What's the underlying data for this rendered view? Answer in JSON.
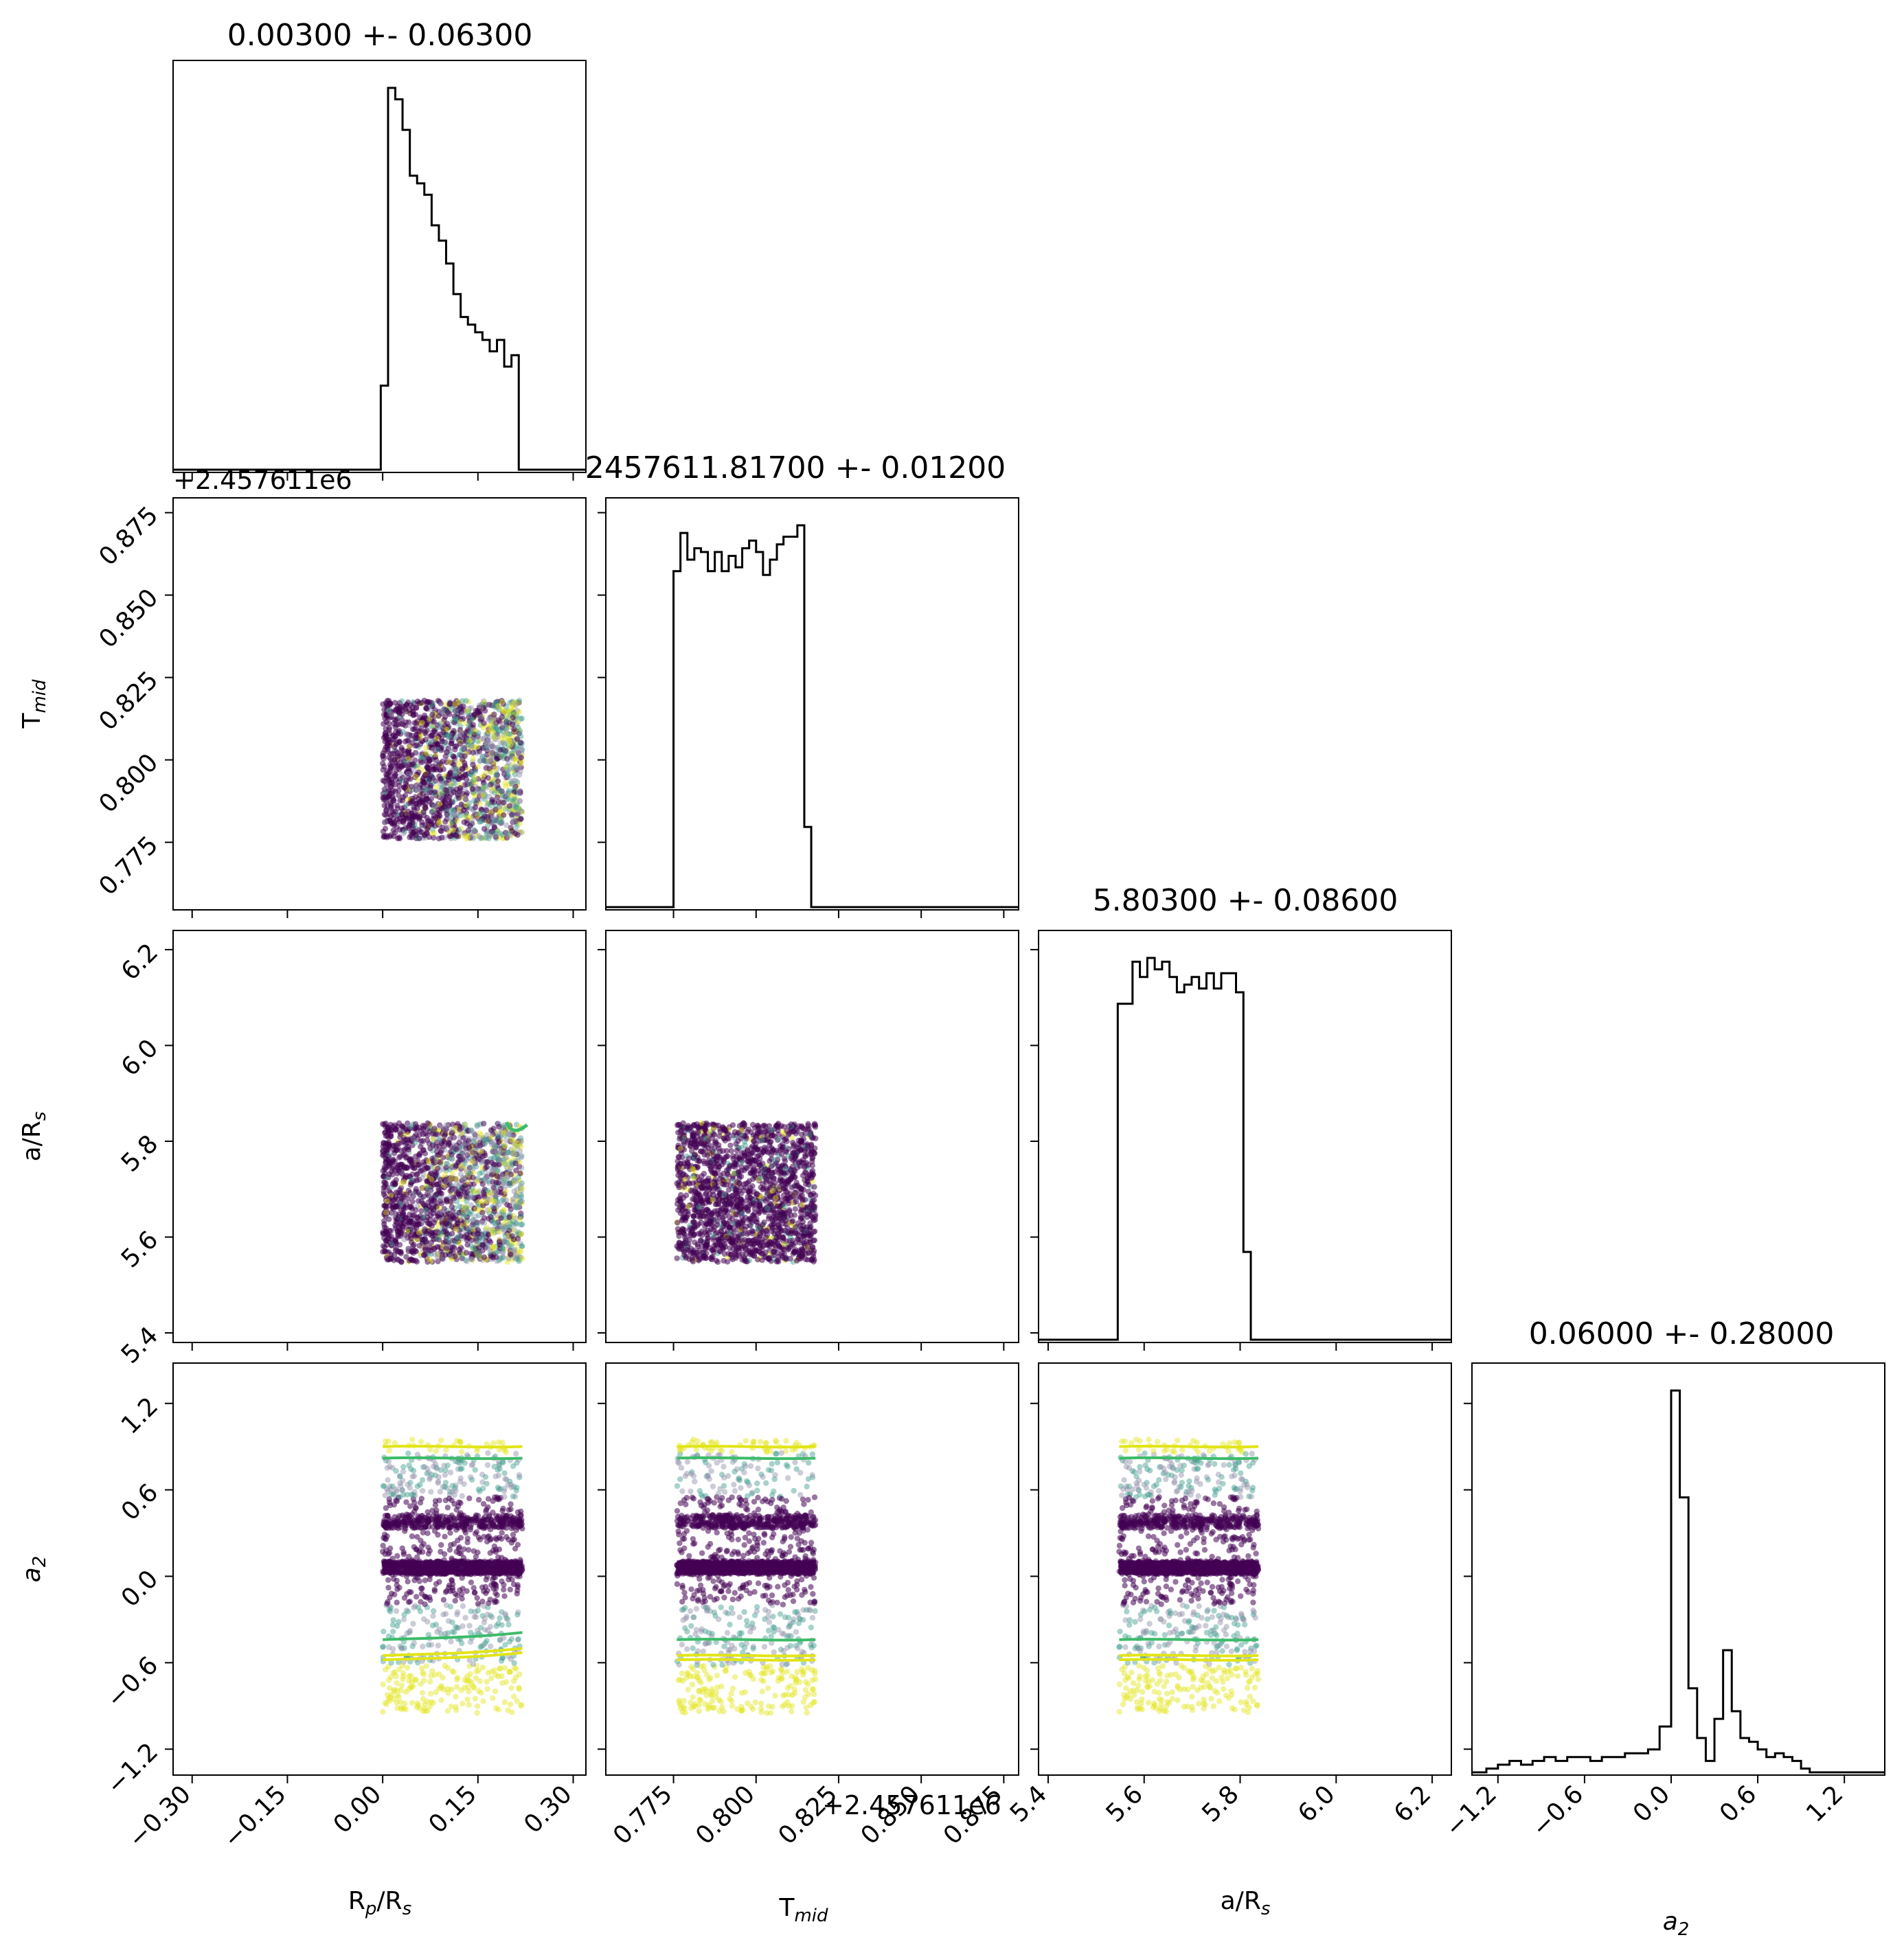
{
  "chart_data": {
    "type": "corner",
    "params": [
      {
        "key": "rp_rs",
        "label": "R",
        "label_sub": "p",
        "label_tail": "/R",
        "label_tail_sub": "s",
        "title": "0.00300 +- 0.06300",
        "range": [
          -0.33,
          0.32
        ],
        "ticks": [
          -0.3,
          -0.15,
          0.0,
          0.15,
          0.3
        ],
        "tick_labels": [
          "−0.30",
          "−0.15",
          "0.00",
          "0.15",
          "0.30"
        ],
        "bin_edges": [
          -0.003,
          0.0085,
          0.0199,
          0.0313,
          0.0428,
          0.0542,
          0.0656,
          0.0771,
          0.0885,
          0.0999,
          0.1114,
          0.1228,
          0.1342,
          0.1457,
          0.1571,
          0.1685,
          0.18,
          0.1914,
          0.2028,
          0.2143,
          0.2257
        ],
        "hist": [
          0.22,
          1.0,
          0.97,
          0.89,
          0.77,
          0.75,
          0.72,
          0.64,
          0.6,
          0.54,
          0.46,
          0.4,
          0.38,
          0.36,
          0.34,
          0.31,
          0.34,
          0.27,
          0.3,
          0.0
        ],
        "sample_range": [
          0.0,
          0.22
        ]
      },
      {
        "key": "t_mid",
        "label": "T",
        "label_sub": "mid",
        "title": "2457611.81700 +- 0.01200",
        "offset": "+2.457611e6",
        "range": [
          0.7545,
          0.8795
        ],
        "ticks": [
          0.775,
          0.8,
          0.825,
          0.85,
          0.875
        ],
        "tick_labels": [
          "0.775",
          "0.800",
          "0.825",
          "0.850",
          "0.875"
        ],
        "bin_edges": [
          0.775,
          0.7771,
          0.7792,
          0.7813,
          0.7833,
          0.7854,
          0.7875,
          0.7896,
          0.7917,
          0.7938,
          0.7958,
          0.7979,
          0.8,
          0.8021,
          0.8042,
          0.8063,
          0.8083,
          0.8104,
          0.8125,
          0.8146,
          0.8167,
          0.8188
        ],
        "hist": [
          0.88,
          0.98,
          0.91,
          0.94,
          0.93,
          0.88,
          0.93,
          0.88,
          0.92,
          0.89,
          0.94,
          0.96,
          0.93,
          0.87,
          0.91,
          0.95,
          0.97,
          0.97,
          1.0,
          0.21,
          0.0
        ],
        "sample_range": [
          0.776,
          0.818
        ]
      },
      {
        "key": "a_rs",
        "label": "a/R",
        "label_sub": "s",
        "title": "5.80300 +- 0.08600",
        "range": [
          5.38,
          6.24
        ],
        "ticks": [
          5.4,
          5.6,
          5.8,
          6.0,
          6.2
        ],
        "tick_labels": [
          "5.4",
          "5.6",
          "5.8",
          "6.0",
          "6.2"
        ],
        "bin_edges": [
          5.545,
          5.5604,
          5.5758,
          5.5912,
          5.6066,
          5.622,
          5.6374,
          5.6528,
          5.6682,
          5.6836,
          5.699,
          5.7144,
          5.7298,
          5.7452,
          5.7606,
          5.776,
          5.7914,
          5.8068,
          5.8222,
          5.8376,
          5.853
        ],
        "hist": [
          0.88,
          0.88,
          0.99,
          0.95,
          1.0,
          0.97,
          0.99,
          0.95,
          0.91,
          0.93,
          0.95,
          0.92,
          0.96,
          0.92,
          0.96,
          0.96,
          0.91,
          0.23,
          0.0,
          0.0
        ],
        "sample_range": [
          5.548,
          5.838
        ]
      },
      {
        "key": "a2",
        "label": "a",
        "label_sub": "2",
        "label_italic": true,
        "title": "0.06000 +- 0.28000",
        "range": [
          -1.38,
          1.48
        ],
        "ticks": [
          -1.2,
          -0.6,
          0.0,
          0.6,
          1.2
        ],
        "tick_labels": [
          "−1.2",
          "−0.6",
          "0.0",
          "0.6",
          "1.2"
        ],
        "bin_edges": [
          -1.36,
          -1.28,
          -1.2,
          -1.12,
          -1.04,
          -0.96,
          -0.88,
          -0.8,
          -0.72,
          -0.64,
          -0.56,
          -0.48,
          -0.4,
          -0.32,
          -0.24,
          -0.16,
          -0.08,
          0.0,
          0.06,
          0.12,
          0.18,
          0.24,
          0.3,
          0.36,
          0.42,
          0.48,
          0.54,
          0.6,
          0.66,
          0.72,
          0.78,
          0.84,
          0.9,
          0.96,
          1.02,
          1.1,
          1.18,
          1.26,
          1.34,
          1.42
        ],
        "hist": [
          0.0,
          0.01,
          0.02,
          0.03,
          0.02,
          0.03,
          0.04,
          0.03,
          0.04,
          0.04,
          0.03,
          0.04,
          0.04,
          0.05,
          0.05,
          0.06,
          0.12,
          1.0,
          0.72,
          0.22,
          0.09,
          0.03,
          0.14,
          0.32,
          0.16,
          0.09,
          0.08,
          0.06,
          0.04,
          0.05,
          0.04,
          0.03,
          0.01,
          0.0,
          0.0,
          0.0,
          0.0,
          0.0,
          0.0
        ],
        "sample_range": [
          -1.0,
          1.0
        ]
      }
    ],
    "a2_bands": [
      0.06,
      0.38
    ],
    "a2_contours": [
      0.9,
      0.82,
      -0.44,
      -0.55,
      -0.58
    ]
  },
  "colors": {
    "viridis_dark": "#440154",
    "viridis_mid": "#3b9b8c",
    "viridis_green": "#3dbb6a",
    "viridis_yellow": "#e2e418",
    "grey": "#8f8fa8"
  }
}
